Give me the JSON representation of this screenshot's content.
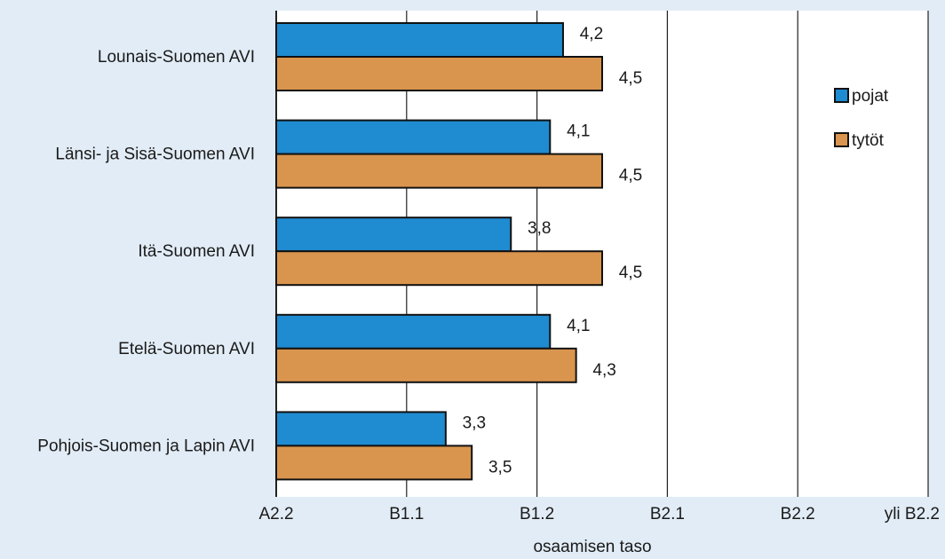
{
  "chart_data": {
    "type": "bar",
    "orientation": "horizontal",
    "title": "",
    "xlabel": "osaamisen taso",
    "ylabel": "",
    "categories": [
      "Lounais-Suomen AVI",
      "Länsi- ja Sisä-Suomen AVI",
      "Itä-Suomen AVI",
      "Etelä-Suomen AVI",
      "Pohjois-Suomen ja Lapin AVI"
    ],
    "x_ticks": [
      "A2.2",
      "B1.1",
      "B1.2",
      "B2.1",
      "B2.2",
      "yli B2.2"
    ],
    "xlim": [
      2,
      7
    ],
    "grid": true,
    "legend_position": "right",
    "series": [
      {
        "name": "pojat",
        "color": "#1f8bd0",
        "values": [
          4.2,
          4.1,
          3.8,
          4.1,
          3.3
        ],
        "labels": [
          "4,2",
          "4,1",
          "3,8",
          "4,1",
          "3,3"
        ]
      },
      {
        "name": "tytöt",
        "color": "#d9954e",
        "values": [
          4.5,
          4.5,
          4.5,
          4.3,
          3.5
        ],
        "labels": [
          "4,5",
          "4,5",
          "4,5",
          "4,3",
          "3,5"
        ]
      }
    ]
  }
}
